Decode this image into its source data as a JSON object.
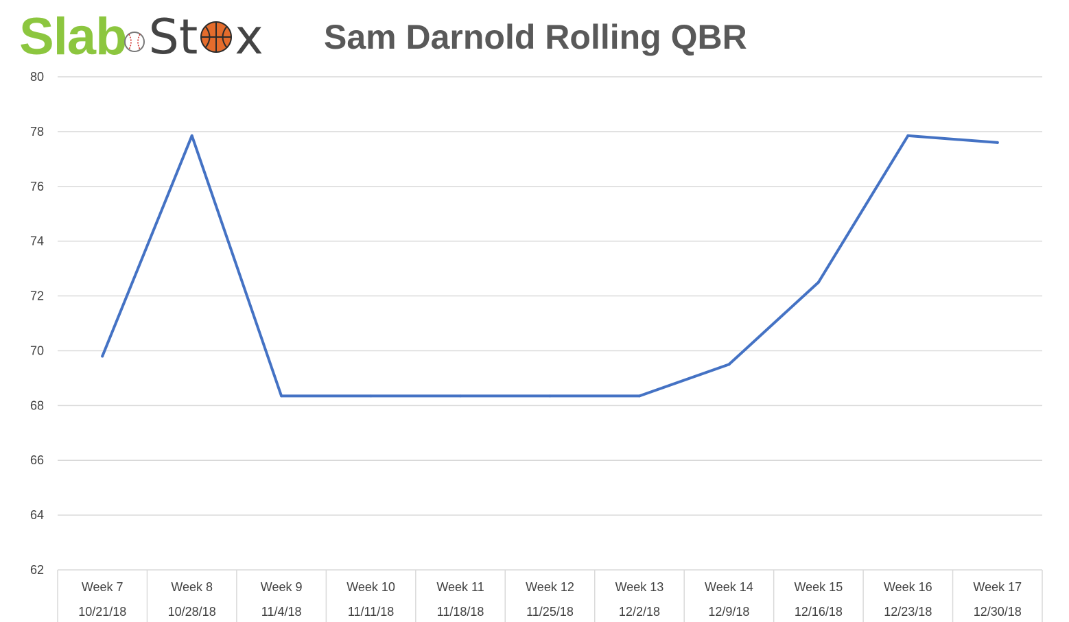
{
  "brand": {
    "part1": "Slab",
    "part2a": "St",
    "part2b": "x",
    "icons": [
      "baseball-icon",
      "basketball-icon"
    ],
    "color_primary": "#8cc63f",
    "color_secondary": "#444444"
  },
  "chart_data": {
    "type": "line",
    "title": "Sam Darnold Rolling QBR",
    "xlabel": "",
    "ylabel": "",
    "categories": [
      [
        "Week 7",
        "10/21/18"
      ],
      [
        "Week 8",
        "10/28/18"
      ],
      [
        "Week 9",
        "11/4/18"
      ],
      [
        "Week 10",
        "11/11/18"
      ],
      [
        "Week 11",
        "11/18/18"
      ],
      [
        "Week 12",
        "11/25/18"
      ],
      [
        "Week 13",
        "12/2/18"
      ],
      [
        "Week 14",
        "12/9/18"
      ],
      [
        "Week 15",
        "12/16/18"
      ],
      [
        "Week 16",
        "12/23/18"
      ],
      [
        "Week 17",
        "12/30/18"
      ]
    ],
    "series": [
      {
        "values": [
          69.8,
          77.85,
          68.35,
          68.35,
          68.35,
          68.35,
          68.35,
          69.5,
          72.5,
          77.85,
          77.6
        ],
        "color": "#4472c4"
      }
    ],
    "ylim": [
      62,
      80
    ],
    "yticks": [
      62,
      64,
      66,
      68,
      70,
      72,
      74,
      76,
      78,
      80
    ],
    "grid": true,
    "legend": "none",
    "colors": {
      "title": "#595959",
      "gridline": "#d9d9d9",
      "axis_text": "#404040"
    }
  }
}
